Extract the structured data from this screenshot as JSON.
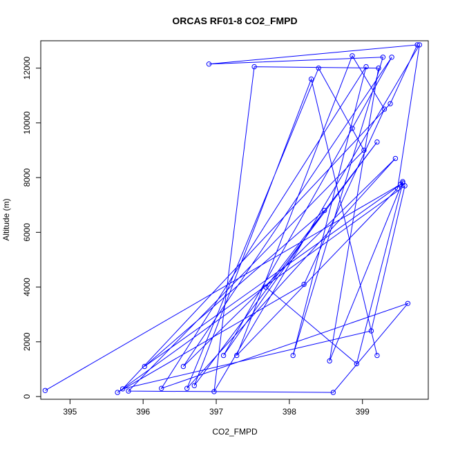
{
  "chart_data": {
    "type": "line",
    "title": "ORCAS RF01-8 CO2_FMPD",
    "xlabel": "CO2_FMPD",
    "ylabel": "Altitude (m)",
    "xlim": [
      394.6,
      399.9
    ],
    "ylim": [
      -100,
      13000
    ],
    "x_ticks": [
      395,
      396,
      397,
      398,
      399
    ],
    "y_ticks": [
      0,
      2000,
      4000,
      6000,
      8000,
      10000,
      12000
    ],
    "grid": false,
    "legend": "none",
    "marker": "open-circle",
    "colors": {
      "series": "#0000ff",
      "axis": "#000000",
      "background": "#ffffff"
    },
    "series": [
      {
        "x": [
          394.66,
          399.52,
          399.55,
          398.55,
          399.22,
          397.52,
          396.97,
          399.78,
          399.48,
          397.28,
          398.86,
          399.3,
          398.2,
          395.65,
          399.58,
          399.12,
          395.72,
          399.38,
          399.75,
          396.9,
          399.28,
          398.05,
          399.05,
          396.25,
          399.62,
          398.6,
          395.8,
          399.02,
          398.4,
          396.6,
          399.45,
          396.55,
          399.4,
          398.86,
          397.1,
          398.48,
          396.02,
          399.55,
          398.92,
          397.68,
          399.2,
          396.7,
          398.3,
          399.2
        ],
        "y": [
          220,
          7750,
          7850,
          1300,
          12000,
          12050,
          180,
          12850,
          7600,
          1500,
          12450,
          10500,
          4100,
          150,
          7700,
          2400,
          280,
          10700,
          12850,
          12150,
          12400,
          1500,
          12050,
          300,
          3400,
          150,
          200,
          9000,
          12000,
          300,
          8700,
          1100,
          12400,
          9800,
          1500,
          6800,
          1100,
          7800,
          1200,
          4000,
          9300,
          400,
          11600,
          1500
        ]
      }
    ]
  }
}
